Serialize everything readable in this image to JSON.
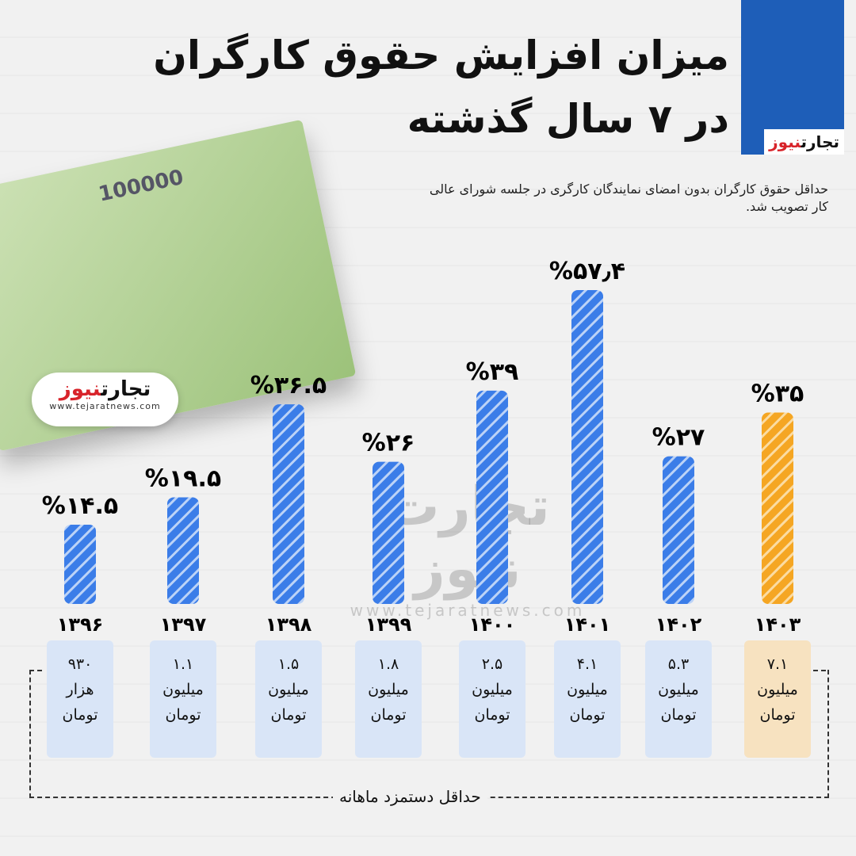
{
  "title": {
    "line1": "میزان افزایش حقوق کارگران",
    "line2": "در ۷ سال گذشته"
  },
  "subtitle": "حداقل حقوق کارگران بدون امضای نمایندگان کارگری در جلسه شورای عالی کار تصویب شد.",
  "logo": {
    "part1": "تجارت",
    "part2": "نیوز",
    "url": "www.tejaratnews.com"
  },
  "watermark": {
    "name": "تجارت نیوز",
    "url": "www.tejaratnews.com"
  },
  "money_image": {
    "denomination": "100000"
  },
  "colors": {
    "bar": "#3b7de8",
    "highlight": "#f5a623",
    "wage_box": "#d9e5f7",
    "wage_box_highlight": "#f7e2c0",
    "brand": "#1e5eb8"
  },
  "chart_data": {
    "type": "bar",
    "categories": [
      "۱۳۹۶",
      "۱۳۹۷",
      "۱۳۹۸",
      "۱۳۹۹",
      "۱۴۰۰",
      "۱۴۰۱",
      "۱۴۰۲",
      "۱۴۰۳"
    ],
    "values": [
      14.5,
      19.5,
      36.5,
      26,
      39,
      57.4,
      27,
      35
    ],
    "data_labels": [
      "%۱۴.۵",
      "%۱۹.۵",
      "%۳۶.۵",
      "%۲۶",
      "%۳۹",
      "%۵۷٫۴",
      "%۲۷",
      "%۳۵"
    ],
    "highlight_index": 7,
    "bar_pattern": "diagonal-stripes",
    "grid": false
  },
  "wages": {
    "label": "حداقل دستمزد ماهانه",
    "items": [
      {
        "amount": "۹۳۰",
        "unit": "هزار",
        "currency": "تومان"
      },
      {
        "amount": "۱.۱",
        "unit": "میلیون",
        "currency": "تومان"
      },
      {
        "amount": "۱.۵",
        "unit": "میلیون",
        "currency": "تومان"
      },
      {
        "amount": "۱.۸",
        "unit": "میلیون",
        "currency": "تومان"
      },
      {
        "amount": "۲.۵",
        "unit": "میلیون",
        "currency": "تومان"
      },
      {
        "amount": "۴.۱",
        "unit": "میلیون",
        "currency": "تومان"
      },
      {
        "amount": "۵.۳",
        "unit": "میلیون",
        "currency": "تومان"
      },
      {
        "amount": "۷.۱",
        "unit": "میلیون",
        "currency": "تومان"
      }
    ]
  }
}
